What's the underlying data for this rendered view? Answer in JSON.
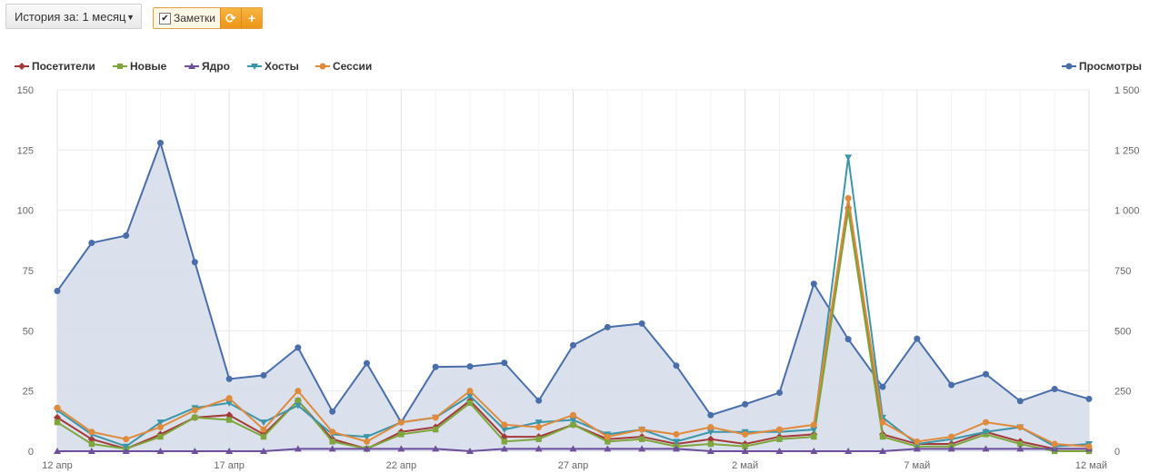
{
  "toolbar": {
    "history_label": "История за: 1 месяц",
    "notes_label": "Заметки",
    "notes_checked": true,
    "refresh_icon": "refresh-icon",
    "add_icon": "plus-icon"
  },
  "colors": {
    "visitors": "#a33a3a",
    "new": "#7fa63d",
    "core": "#6d4f9c",
    "hosts": "#3d95a8",
    "sessions": "#e08a3c",
    "views": "#4a6ea9",
    "views_fill": "#d3dcea",
    "grid": "#ebebeb"
  },
  "chart_data": {
    "type": "line",
    "x": [
      "12 апр",
      "13 апр",
      "14 апр",
      "15 апр",
      "16 апр",
      "17 апр",
      "18 апр",
      "19 апр",
      "20 апр",
      "21 апр",
      "22 апр",
      "23 апр",
      "24 апр",
      "25 апр",
      "26 апр",
      "27 апр",
      "28 апр",
      "29 апр",
      "30 апр",
      "1 май",
      "2 май",
      "3 май",
      "4 май",
      "5 май",
      "6 май",
      "7 май",
      "8 май",
      "9 май",
      "10 май",
      "11 май",
      "12 май"
    ],
    "x_tick_labels": [
      "12 апр",
      "17 апр",
      "22 апр",
      "27 апр",
      "2 май",
      "7 май",
      "12 май"
    ],
    "y_left": {
      "ylim": [
        0,
        150
      ],
      "ticks": [
        "0",
        "25",
        "50",
        "75",
        "100",
        "125",
        "150"
      ]
    },
    "y_right": {
      "ylim": [
        0,
        1500
      ],
      "ticks": [
        "0",
        "250",
        "500",
        "750",
        "1 000",
        "1 250",
        "1 500"
      ]
    },
    "grid": true,
    "legend_position": "top",
    "series": [
      {
        "name": "Посетители",
        "key": "visitors",
        "axis": "left",
        "marker": "diamond",
        "values": [
          14,
          5,
          1,
          7,
          14,
          15,
          7,
          21,
          5,
          1,
          8,
          10,
          21,
          6,
          6,
          11,
          5,
          6,
          3,
          5,
          3,
          6,
          7,
          101,
          7,
          3,
          3,
          8,
          4,
          1,
          1
        ]
      },
      {
        "name": "Новые",
        "key": "new",
        "axis": "left",
        "marker": "square",
        "values": [
          12,
          3,
          1,
          6,
          14,
          13,
          6,
          21,
          4,
          1,
          7,
          9,
          20,
          4,
          5,
          11,
          4,
          5,
          2,
          3,
          2,
          5,
          6,
          100,
          6,
          2,
          2,
          7,
          3,
          0,
          0
        ]
      },
      {
        "name": "Ядро",
        "key": "core",
        "axis": "left",
        "marker": "triangle",
        "values": [
          0,
          0,
          0,
          0,
          0,
          0,
          0,
          1,
          1,
          1,
          1,
          1,
          0,
          1,
          1,
          1,
          1,
          1,
          1,
          0,
          0,
          0,
          0,
          0,
          0,
          1,
          1,
          1,
          1,
          1,
          1
        ]
      },
      {
        "name": "Хосты",
        "key": "hosts",
        "axis": "left",
        "marker": "triangle-down",
        "values": [
          17,
          7,
          2,
          12,
          18,
          20,
          12,
          19,
          7,
          6,
          12,
          14,
          23,
          9,
          12,
          13,
          7,
          9,
          4,
          8,
          8,
          8,
          9,
          122,
          14,
          3,
          5,
          8,
          10,
          2,
          3
        ]
      },
      {
        "name": "Сессии",
        "key": "sessions",
        "axis": "left",
        "marker": "circle",
        "values": [
          18,
          8,
          5,
          10,
          17,
          22,
          9,
          25,
          8,
          4,
          12,
          14,
          25,
          11,
          10,
          15,
          6,
          9,
          7,
          10,
          7,
          9,
          11,
          105,
          12,
          4,
          6,
          12,
          10,
          3,
          2
        ]
      },
      {
        "name": "Просмотры",
        "key": "views",
        "axis": "right",
        "marker": "circle",
        "area": true,
        "values": [
          665,
          865,
          895,
          1280,
          785,
          300,
          315,
          430,
          165,
          365,
          120,
          350,
          352,
          367,
          210,
          440,
          515,
          530,
          355,
          150,
          195,
          243,
          695,
          465,
          267,
          467,
          275,
          320,
          208,
          258,
          217
        ]
      }
    ]
  }
}
